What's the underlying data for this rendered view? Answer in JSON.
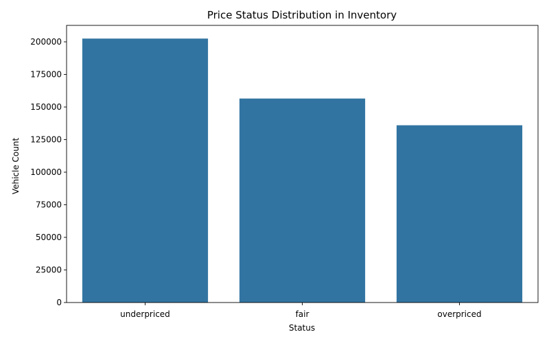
{
  "chart_data": {
    "type": "bar",
    "title": "Price Status Distribution in Inventory",
    "xlabel": "Status",
    "ylabel": "Vehicle Count",
    "categories": [
      "underpriced",
      "fair",
      "overpriced"
    ],
    "values": [
      202500,
      156500,
      136000
    ],
    "ylim": [
      0,
      212625
    ],
    "yticks": [
      0,
      25000,
      50000,
      75000,
      100000,
      125000,
      150000,
      175000,
      200000
    ],
    "ytick_labels": [
      "0",
      "25000",
      "50000",
      "75000",
      "100000",
      "125000",
      "150000",
      "175000",
      "200000"
    ],
    "bar_color": "#3274a1",
    "grid": false
  }
}
